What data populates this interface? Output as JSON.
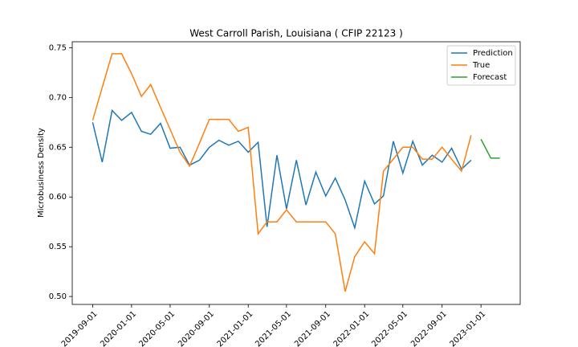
{
  "chart_data": {
    "type": "line",
    "title": "West Carroll Parish, Louisiana ( CFIP 22123 )",
    "y_label": "Microbusiness Density",
    "x": [
      "2019-09-01",
      "2019-10-01",
      "2019-11-01",
      "2019-12-01",
      "2020-01-01",
      "2020-02-01",
      "2020-03-01",
      "2020-04-01",
      "2020-05-01",
      "2020-06-01",
      "2020-07-01",
      "2020-08-01",
      "2020-09-01",
      "2020-10-01",
      "2020-11-01",
      "2020-12-01",
      "2021-01-01",
      "2021-02-01",
      "2021-03-01",
      "2021-04-01",
      "2021-05-01",
      "2021-06-01",
      "2021-07-01",
      "2021-08-01",
      "2021-09-01",
      "2021-10-01",
      "2021-11-01",
      "2021-12-01",
      "2022-01-01",
      "2022-02-01",
      "2022-03-01",
      "2022-04-01",
      "2022-05-01",
      "2022-06-01",
      "2022-07-01",
      "2022-08-01",
      "2022-09-01",
      "2022-10-01",
      "2022-11-01",
      "2022-12-01",
      "2023-01-01",
      "2023-02-01",
      "2023-03-01"
    ],
    "series": [
      {
        "name": "Prediction",
        "color": "#1f77b4",
        "values": [
          0.675,
          0.635,
          0.687,
          0.677,
          0.685,
          0.666,
          0.663,
          0.674,
          0.649,
          0.65,
          0.632,
          0.637,
          0.65,
          0.657,
          0.652,
          0.656,
          0.645,
          0.655,
          0.57,
          0.642,
          0.588,
          0.637,
          0.592,
          0.625,
          0.601,
          0.619,
          0.597,
          0.569,
          0.616,
          0.593,
          0.601,
          0.656,
          0.624,
          0.656,
          0.632,
          0.642,
          0.635,
          0.649,
          0.628,
          0.637,
          null,
          null,
          null
        ]
      },
      {
        "name": "True",
        "color": "#ff7f0e",
        "values": [
          0.677,
          0.71,
          0.744,
          0.744,
          0.724,
          0.701,
          0.713,
          0.69,
          0.668,
          0.645,
          0.631,
          0.654,
          0.678,
          0.678,
          0.678,
          0.666,
          0.67,
          0.563,
          0.575,
          0.575,
          0.587,
          0.575,
          0.575,
          0.575,
          0.575,
          0.563,
          0.505,
          0.54,
          0.555,
          0.543,
          0.626,
          0.638,
          0.65,
          0.65,
          0.638,
          0.638,
          0.65,
          0.638,
          0.626,
          0.662,
          null,
          null,
          null
        ]
      },
      {
        "name": "Forecast",
        "color": "#2ca02c",
        "values": [
          null,
          null,
          null,
          null,
          null,
          null,
          null,
          null,
          null,
          null,
          null,
          null,
          null,
          null,
          null,
          null,
          null,
          null,
          null,
          null,
          null,
          null,
          null,
          null,
          null,
          null,
          null,
          null,
          null,
          null,
          null,
          null,
          null,
          null,
          null,
          null,
          null,
          null,
          null,
          null,
          0.658,
          0.639,
          0.639
        ]
      }
    ],
    "xlim": [
      "2019-06-29",
      "2023-05-04"
    ],
    "xticks": [
      "2019-09-01",
      "2020-01-01",
      "2020-05-01",
      "2020-09-01",
      "2021-01-01",
      "2021-05-01",
      "2021-09-01",
      "2022-01-01",
      "2022-05-01",
      "2022-09-01",
      "2023-01-01"
    ],
    "ylim": [
      0.492,
      0.756
    ],
    "yticks": [
      {
        "value": 0.5,
        "label": "0.50"
      },
      0.55,
      {
        "value": 0.6,
        "label": "0.60"
      },
      0.65,
      {
        "value": 0.7,
        "label": "0.70"
      },
      0.75
    ],
    "legend": "upper right"
  }
}
